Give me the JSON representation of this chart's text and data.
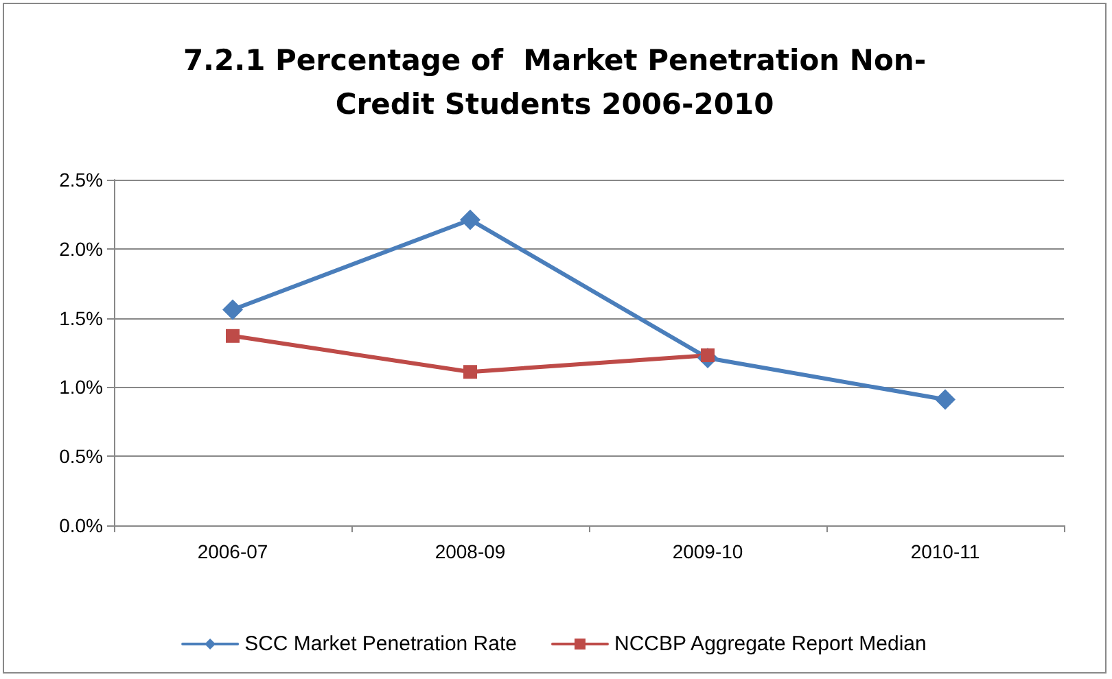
{
  "chart_data": {
    "type": "line",
    "title": "7.2.1 Percentage of  Market Penetration Non-\nCredit Students 2006-2010",
    "categories": [
      "2006-07",
      "2008-09",
      "2009-10",
      "2010-11"
    ],
    "series": [
      {
        "name": "SCC Market Penetration Rate",
        "color": "#4a7ebb",
        "marker": "diamond",
        "values": [
          1.56,
          2.21,
          1.21,
          0.91
        ]
      },
      {
        "name": "NCCBP Aggregate Report Median",
        "color": "#be4b48",
        "marker": "square",
        "values": [
          1.37,
          1.11,
          1.23,
          null
        ]
      }
    ],
    "ylim": [
      0,
      2.5
    ],
    "yticks": [
      {
        "value": 0,
        "label": "0.0%"
      },
      {
        "value": 0.5,
        "label": "0.5%"
      },
      {
        "value": 1,
        "label": "1.0%"
      },
      {
        "value": 1.5,
        "label": "1.5%"
      },
      {
        "value": 2,
        "label": "2.0%"
      },
      {
        "value": 2.5,
        "label": "2.5%"
      }
    ],
    "grid": "y",
    "legend": "bottom",
    "line_style": "solid"
  }
}
